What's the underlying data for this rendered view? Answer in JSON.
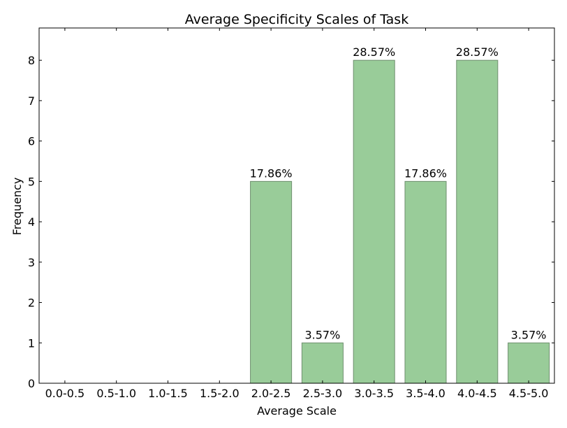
{
  "chart_data": {
    "type": "bar",
    "title": "Average Specificity Scales of Task",
    "xlabel": "Average Scale",
    "ylabel": "Frequency",
    "categories": [
      "0.0-0.5",
      "0.5-1.0",
      "1.0-1.5",
      "1.5-2.0",
      "2.0-2.5",
      "2.5-3.0",
      "3.0-3.5",
      "3.5-4.0",
      "4.0-4.5",
      "4.5-5.0"
    ],
    "values": [
      0,
      0,
      0,
      0,
      5,
      1,
      8,
      5,
      8,
      1
    ],
    "bar_labels": [
      "",
      "",
      "",
      "",
      "17.86%",
      "3.57%",
      "28.57%",
      "17.86%",
      "28.57%",
      "3.57%"
    ],
    "yticks": [
      0,
      1,
      2,
      3,
      4,
      5,
      6,
      7,
      8
    ],
    "ylim": [
      0,
      8.8
    ],
    "grid": false,
    "bar_color": "#99cc99",
    "bar_edge_color": "#6f8f6f"
  }
}
